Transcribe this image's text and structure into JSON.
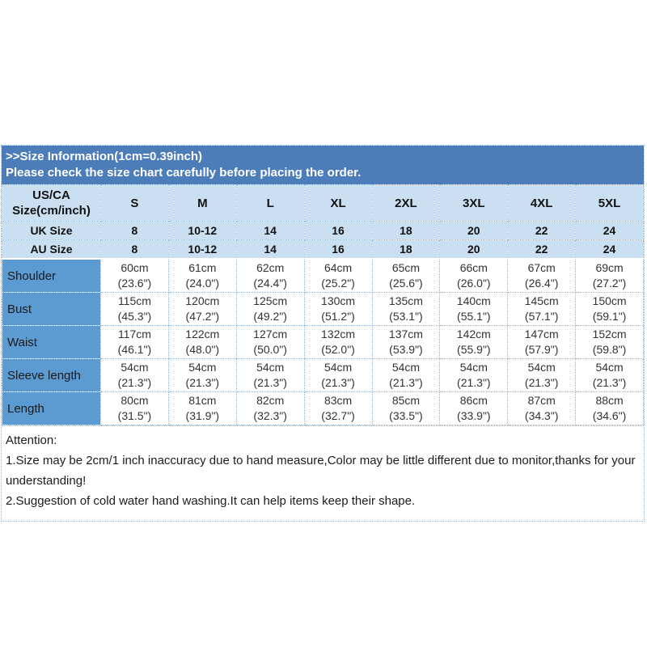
{
  "colors": {
    "banner_bg": "#4d7db9",
    "header_bg": "#cadff2",
    "label_bg": "#5c9ad2",
    "grid": "#93b8da"
  },
  "banner": {
    "line1": ">>Size Information(1cm=0.39inch)",
    "line2": "Please check the size chart carefully before placing the order."
  },
  "table": {
    "corner": {
      "line1": "US/CA",
      "line2": "Size(cm/inch)"
    },
    "sizes": [
      "S",
      "M",
      "L",
      "XL",
      "2XL",
      "3XL",
      "4XL",
      "5XL"
    ],
    "uk": {
      "label": "UK Size",
      "values": [
        "8",
        "10-12",
        "14",
        "16",
        "18",
        "20",
        "22",
        "24"
      ]
    },
    "au": {
      "label": "AU Size",
      "values": [
        "8",
        "10-12",
        "14",
        "16",
        "18",
        "20",
        "22",
        "24"
      ]
    },
    "measurements": [
      {
        "label": "Shoulder",
        "values": [
          {
            "cm": "60cm",
            "inch": "(23.6\")"
          },
          {
            "cm": "61cm",
            "inch": "(24.0\")"
          },
          {
            "cm": "62cm",
            "inch": "(24.4\")"
          },
          {
            "cm": "64cm",
            "inch": "(25.2\")"
          },
          {
            "cm": "65cm",
            "inch": "(25.6\")"
          },
          {
            "cm": "66cm",
            "inch": "(26.0\")"
          },
          {
            "cm": "67cm",
            "inch": "(26.4\")"
          },
          {
            "cm": "69cm",
            "inch": "(27.2\")"
          }
        ]
      },
      {
        "label": "Bust",
        "values": [
          {
            "cm": "115cm",
            "inch": "(45.3\")"
          },
          {
            "cm": "120cm",
            "inch": "(47.2\")"
          },
          {
            "cm": "125cm",
            "inch": "(49.2\")"
          },
          {
            "cm": "130cm",
            "inch": "(51.2\")"
          },
          {
            "cm": "135cm",
            "inch": "(53.1\")"
          },
          {
            "cm": "140cm",
            "inch": "(55.1\")"
          },
          {
            "cm": "145cm",
            "inch": "(57.1\")"
          },
          {
            "cm": "150cm",
            "inch": "(59.1\")"
          }
        ]
      },
      {
        "label": "Waist",
        "values": [
          {
            "cm": "117cm",
            "inch": "(46.1\")"
          },
          {
            "cm": "122cm",
            "inch": "(48.0\")"
          },
          {
            "cm": "127cm",
            "inch": "(50.0\")"
          },
          {
            "cm": "132cm",
            "inch": "(52.0\")"
          },
          {
            "cm": "137cm",
            "inch": "(53.9\")"
          },
          {
            "cm": "142cm",
            "inch": "(55.9\")"
          },
          {
            "cm": "147cm",
            "inch": "(57.9\")"
          },
          {
            "cm": "152cm",
            "inch": "(59.8\")"
          }
        ]
      },
      {
        "label": "Sleeve length",
        "values": [
          {
            "cm": "54cm",
            "inch": "(21.3\")"
          },
          {
            "cm": "54cm",
            "inch": "(21.3\")"
          },
          {
            "cm": "54cm",
            "inch": "(21.3\")"
          },
          {
            "cm": "54cm",
            "inch": "(21.3\")"
          },
          {
            "cm": "54cm",
            "inch": "(21.3\")"
          },
          {
            "cm": "54cm",
            "inch": "(21.3\")"
          },
          {
            "cm": "54cm",
            "inch": "(21.3\")"
          },
          {
            "cm": "54cm",
            "inch": "(21.3\")"
          }
        ]
      },
      {
        "label": "Length",
        "values": [
          {
            "cm": "80cm",
            "inch": "(31.5\")"
          },
          {
            "cm": "81cm",
            "inch": "(31.9\")"
          },
          {
            "cm": "82cm",
            "inch": "(32.3\")"
          },
          {
            "cm": "83cm",
            "inch": "(32.7\")"
          },
          {
            "cm": "85cm",
            "inch": "(33.5\")"
          },
          {
            "cm": "86cm",
            "inch": "(33.9\")"
          },
          {
            "cm": "87cm",
            "inch": "(34.3\")"
          },
          {
            "cm": "88cm",
            "inch": "(34.6\")"
          }
        ]
      }
    ]
  },
  "attention": {
    "title": "Attention:",
    "line1": "1.Size may be 2cm/1 inch inaccuracy due to hand measure,Color may be little different due to monitor,thanks for your understanding!",
    "line2": "2.Suggestion of cold water hand washing.It can help items keep their shape."
  }
}
